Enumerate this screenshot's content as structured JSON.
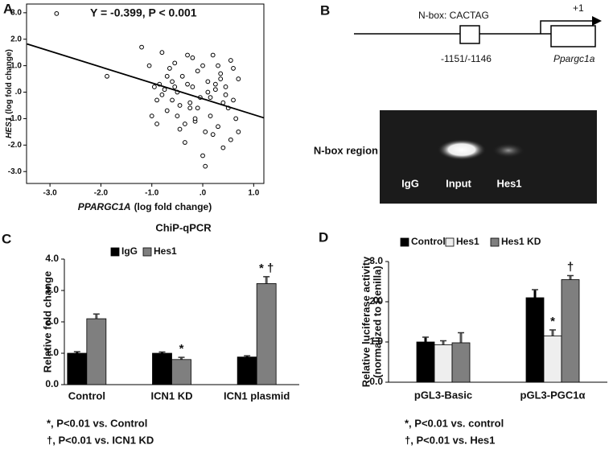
{
  "panel_labels": [
    "A",
    "B",
    "C",
    "D"
  ],
  "chart_data": [
    {
      "type": "scatter",
      "annotation": "Y = -0.399, P < 0.001",
      "xlabel": [
        "PPARGC1A",
        "(log fold change)"
      ],
      "ylabel": [
        "HES1",
        "(log fold change)"
      ],
      "x": [
        -2.87,
        -1.88,
        -1.2,
        -1.05,
        -0.95,
        -0.9,
        -0.85,
        -0.8,
        -0.75,
        -0.7,
        -0.65,
        -0.6,
        -0.55,
        -0.5,
        -0.45,
        -0.4,
        -0.35,
        -0.3,
        -0.25,
        -0.2,
        -0.15,
        -0.1,
        -0.05,
        0.0,
        0.05,
        0.1,
        0.15,
        0.2,
        0.25,
        0.3,
        0.35,
        0.4,
        0.45,
        0.5,
        0.55,
        0.6,
        0.65,
        0.7,
        -1.0,
        -0.8,
        -0.6,
        -0.45,
        -0.3,
        -0.2,
        -0.1,
        0.0,
        0.1,
        0.2,
        0.3,
        0.45,
        0.6,
        0.7,
        -0.7,
        -0.5,
        -0.25,
        -0.15,
        0.05,
        0.25,
        0.4,
        0.55,
        -0.9,
        -0.55,
        -0.35,
        0.15,
        0.35
      ],
      "y": [
        2.97,
        0.6,
        1.7,
        1.0,
        0.2,
        -1.2,
        0.3,
        1.5,
        0.1,
        -0.7,
        0.9,
        -0.3,
        1.1,
        0.0,
        -0.5,
        0.6,
        -1.9,
        0.3,
        -0.4,
        1.3,
        -1.1,
        0.8,
        -0.2,
        1.0,
        -1.5,
        0.4,
        -0.9,
        1.4,
        0.1,
        -1.3,
        0.7,
        -2.1,
        0.2,
        -0.6,
        1.2,
        -0.3,
        -1.0,
        0.5,
        -0.9,
        -0.1,
        0.4,
        -1.4,
        1.4,
        0.2,
        -0.6,
        -2.4,
        0.0,
        -1.6,
        1.0,
        -0.1,
        0.9,
        -1.5,
        0.6,
        -0.9,
        -0.6,
        -1.0,
        -2.8,
        0.3,
        -0.4,
        -1.8,
        -0.3,
        0.2,
        -1.2,
        -0.2,
        0.5
      ],
      "fit_line": {
        "x": [
          -3.45,
          1.2
        ],
        "y": [
          1.82,
          -0.97
        ]
      },
      "xlim": [
        -3.46,
        1.2
      ],
      "ylim": [
        -3.45,
        3.33
      ],
      "xticks": [
        {
          "value": -3,
          "label": "-3.0"
        },
        {
          "value": -2,
          "label": "-2.0"
        },
        {
          "value": -1,
          "label": "-1.0"
        },
        {
          "value": 0,
          "label": ".0"
        },
        {
          "value": 1,
          "label": "1.0"
        }
      ],
      "yticks": [
        {
          "value": 3,
          "label": "3.0"
        },
        {
          "value": 2,
          "label": "2.0"
        },
        {
          "value": 1,
          "label": "1.0"
        },
        {
          "value": 0,
          "label": ".0"
        },
        {
          "value": -1,
          "label": "-1.0"
        },
        {
          "value": -2,
          "label": "-2.0"
        },
        {
          "value": -3,
          "label": "-3.0"
        }
      ]
    },
    {
      "type": "bar",
      "title": "ChiP-qPCR",
      "ylabel": [
        "Relative fold change"
      ],
      "categories": [
        "Control",
        "ICN1 KD",
        "ICN1 plasmid"
      ],
      "series": [
        {
          "name": "IgG",
          "color": "#000000",
          "values": [
            1.0,
            1.0,
            0.88
          ],
          "errors": [
            0.05,
            0.04,
            0.04
          ],
          "marks": [
            null,
            null,
            null
          ]
        },
        {
          "name": "Hes1",
          "color": "#7f7f7f",
          "values": [
            2.1,
            0.8,
            3.22
          ],
          "errors": [
            0.15,
            0.07,
            0.22
          ],
          "marks": [
            null,
            "*",
            "* †"
          ]
        }
      ],
      "ylim": [
        0,
        4
      ],
      "yticks": [
        {
          "value": 0,
          "label": "0.0"
        },
        {
          "value": 1,
          "label": "1.0"
        },
        {
          "value": 2,
          "label": "2.0"
        },
        {
          "value": 3,
          "label": "3.0"
        },
        {
          "value": 4,
          "label": "4.0"
        }
      ],
      "footnotes": [
        "*, P<0.01 vs. Control",
        "†, P<0.01 vs. ICN1 KD"
      ]
    },
    {
      "type": "bar",
      "ylabel": [
        "Relative luciferase activity",
        "(normalized to Renilla)"
      ],
      "categories": [
        "pGL3-Basic",
        "pGL3-PGC1α"
      ],
      "series": [
        {
          "name": "Control",
          "color": "#000000",
          "values": [
            1.0,
            2.1
          ],
          "errors": [
            0.12,
            0.2
          ],
          "marks": [
            null,
            null
          ]
        },
        {
          "name": "Hes1",
          "color": "#eeeeee",
          "values": [
            0.93,
            1.15
          ],
          "errors": [
            0.1,
            0.15
          ],
          "marks": [
            null,
            "*"
          ]
        },
        {
          "name": "Hes1 KD",
          "color": "#7f7f7f",
          "values": [
            0.98,
            2.55
          ],
          "errors": [
            0.25,
            0.1
          ],
          "marks": [
            null,
            "†"
          ]
        }
      ],
      "ylim": [
        0,
        3
      ],
      "yticks": [
        {
          "value": 0,
          "label": "0.0"
        },
        {
          "value": 1,
          "label": "1.0"
        },
        {
          "value": 2,
          "label": "2.0"
        },
        {
          "value": 3,
          "label": "3.0"
        }
      ],
      "footnotes": [
        "*, P<0.01 vs. control",
        "†, P<0.01 vs. Hes1"
      ]
    }
  ],
  "panel_b": {
    "motif": "N-box: CACTAG",
    "tss": "+1",
    "position": "-1151/-1146",
    "gene": "Ppargc1a",
    "row_label": "N-box region",
    "lanes": [
      "IgG",
      "Input",
      "Hes1"
    ]
  }
}
